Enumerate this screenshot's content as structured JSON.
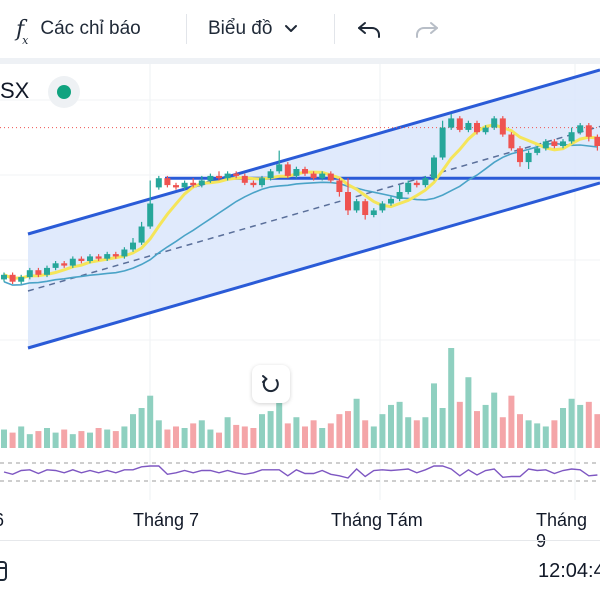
{
  "toolbar": {
    "indicators_label": "Các chỉ báo",
    "chart_type_label": "Biểu đồ"
  },
  "symbol": {
    "text": "SX",
    "status_color": "#10a37f"
  },
  "colors": {
    "bull": "#26a69a",
    "bear": "#ef5350",
    "volume_bull": "#8fd0c0",
    "volume_bear": "#f4a5a8",
    "channel_line": "#2a5bd7",
    "channel_fill": "#dbe6fb",
    "ma_fast": "#f5e55a",
    "ma_slow": "#4aa3c7",
    "oscillator": "#7e57c2"
  },
  "time_axis": {
    "labels": [
      "6",
      "Tháng 7",
      "Tháng Tám",
      "Tháng 9"
    ]
  },
  "footer": {
    "time": "12:04:4"
  },
  "chart_data": {
    "type": "candlestick",
    "x_labels": [
      "Tháng 7",
      "Tháng Tám",
      "Tháng 9"
    ],
    "price_range": [
      0,
      100
    ],
    "candles": [
      {
        "o": 22,
        "c": 24,
        "h": 25,
        "l": 21
      },
      {
        "o": 24,
        "c": 21,
        "h": 25,
        "l": 20
      },
      {
        "o": 21,
        "c": 23,
        "h": 24,
        "l": 20
      },
      {
        "o": 23,
        "c": 26,
        "h": 27,
        "l": 22
      },
      {
        "o": 26,
        "c": 24,
        "h": 27,
        "l": 23
      },
      {
        "o": 24,
        "c": 27,
        "h": 28,
        "l": 23
      },
      {
        "o": 27,
        "c": 29,
        "h": 30,
        "l": 26
      },
      {
        "o": 29,
        "c": 28,
        "h": 30,
        "l": 27
      },
      {
        "o": 28,
        "c": 31,
        "h": 32,
        "l": 27
      },
      {
        "o": 31,
        "c": 30,
        "h": 32,
        "l": 29
      },
      {
        "o": 30,
        "c": 32,
        "h": 33,
        "l": 29
      },
      {
        "o": 32,
        "c": 31,
        "h": 33,
        "l": 30
      },
      {
        "o": 31,
        "c": 33,
        "h": 34,
        "l": 30
      },
      {
        "o": 33,
        "c": 32,
        "h": 34,
        "l": 31
      },
      {
        "o": 32,
        "c": 35,
        "h": 36,
        "l": 31
      },
      {
        "o": 35,
        "c": 38,
        "h": 40,
        "l": 34
      },
      {
        "o": 38,
        "c": 45,
        "h": 47,
        "l": 37
      },
      {
        "o": 45,
        "c": 55,
        "h": 65,
        "l": 44
      },
      {
        "o": 62,
        "c": 66,
        "h": 67,
        "l": 61
      },
      {
        "o": 66,
        "c": 63,
        "h": 67,
        "l": 62
      },
      {
        "o": 63,
        "c": 62,
        "h": 64,
        "l": 61
      },
      {
        "o": 62,
        "c": 64,
        "h": 65,
        "l": 61
      },
      {
        "o": 64,
        "c": 63,
        "h": 66,
        "l": 62
      },
      {
        "o": 63,
        "c": 65,
        "h": 67,
        "l": 62
      },
      {
        "o": 65,
        "c": 67,
        "h": 68,
        "l": 64
      },
      {
        "o": 67,
        "c": 66,
        "h": 69,
        "l": 65
      },
      {
        "o": 66,
        "c": 68,
        "h": 69,
        "l": 65
      },
      {
        "o": 68,
        "c": 67,
        "h": 69,
        "l": 66
      },
      {
        "o": 67,
        "c": 64,
        "h": 68,
        "l": 63
      },
      {
        "o": 64,
        "c": 63,
        "h": 65,
        "l": 62
      },
      {
        "o": 63,
        "c": 66,
        "h": 67,
        "l": 62
      },
      {
        "o": 66,
        "c": 69,
        "h": 70,
        "l": 65
      },
      {
        "o": 69,
        "c": 72,
        "h": 78,
        "l": 68
      },
      {
        "o": 72,
        "c": 67,
        "h": 73,
        "l": 66
      },
      {
        "o": 67,
        "c": 70,
        "h": 71,
        "l": 66
      },
      {
        "o": 70,
        "c": 68,
        "h": 71,
        "l": 67
      },
      {
        "o": 68,
        "c": 66,
        "h": 69,
        "l": 65
      },
      {
        "o": 66,
        "c": 68,
        "h": 69,
        "l": 65
      },
      {
        "o": 68,
        "c": 65,
        "h": 69,
        "l": 64
      },
      {
        "o": 65,
        "c": 60,
        "h": 66,
        "l": 58
      },
      {
        "o": 60,
        "c": 52,
        "h": 66,
        "l": 50
      },
      {
        "o": 52,
        "c": 56,
        "h": 57,
        "l": 51
      },
      {
        "o": 56,
        "c": 50,
        "h": 57,
        "l": 48
      },
      {
        "o": 50,
        "c": 52,
        "h": 53,
        "l": 49
      },
      {
        "o": 52,
        "c": 55,
        "h": 56,
        "l": 51
      },
      {
        "o": 55,
        "c": 57,
        "h": 58,
        "l": 54
      },
      {
        "o": 57,
        "c": 60,
        "h": 63,
        "l": 56
      },
      {
        "o": 60,
        "c": 64,
        "h": 65,
        "l": 59
      },
      {
        "o": 64,
        "c": 63,
        "h": 65,
        "l": 62
      },
      {
        "o": 63,
        "c": 66,
        "h": 67,
        "l": 62
      },
      {
        "o": 66,
        "c": 75,
        "h": 76,
        "l": 65
      },
      {
        "o": 75,
        "c": 88,
        "h": 91,
        "l": 74
      },
      {
        "o": 88,
        "c": 92,
        "h": 94,
        "l": 87
      },
      {
        "o": 92,
        "c": 87,
        "h": 93,
        "l": 86
      },
      {
        "o": 87,
        "c": 90,
        "h": 91,
        "l": 86
      },
      {
        "o": 90,
        "c": 86,
        "h": 91,
        "l": 85
      },
      {
        "o": 86,
        "c": 88,
        "h": 89,
        "l": 85
      },
      {
        "o": 88,
        "c": 92,
        "h": 93,
        "l": 87
      },
      {
        "o": 92,
        "c": 85,
        "h": 93,
        "l": 84
      },
      {
        "o": 85,
        "c": 79,
        "h": 86,
        "l": 78
      },
      {
        "o": 79,
        "c": 73,
        "h": 80,
        "l": 71
      },
      {
        "o": 73,
        "c": 77,
        "h": 78,
        "l": 70
      },
      {
        "o": 77,
        "c": 79,
        "h": 80,
        "l": 76
      },
      {
        "o": 79,
        "c": 82,
        "h": 83,
        "l": 78
      },
      {
        "o": 82,
        "c": 80,
        "h": 83,
        "l": 79
      },
      {
        "o": 80,
        "c": 82,
        "h": 83,
        "l": 79
      },
      {
        "o": 82,
        "c": 86,
        "h": 88,
        "l": 81
      },
      {
        "o": 86,
        "c": 89,
        "h": 90,
        "l": 85
      },
      {
        "o": 89,
        "c": 84,
        "h": 90,
        "l": 82
      },
      {
        "o": 84,
        "c": 80,
        "h": 85,
        "l": 78
      }
    ],
    "volumes": [
      12,
      10,
      14,
      9,
      11,
      13,
      10,
      12,
      9,
      11,
      10,
      13,
      12,
      11,
      14,
      22,
      26,
      34,
      18,
      12,
      14,
      13,
      16,
      18,
      12,
      10,
      20,
      15,
      14,
      13,
      22,
      24,
      40,
      16,
      20,
      14,
      18,
      13,
      16,
      22,
      24,
      32,
      18,
      14,
      22,
      28,
      30,
      20,
      18,
      20,
      42,
      26,
      65,
      30,
      46,
      24,
      28,
      36,
      20,
      34,
      22,
      18,
      16,
      14,
      18,
      26,
      32,
      28,
      30,
      22
    ],
    "support_level": 66
  }
}
